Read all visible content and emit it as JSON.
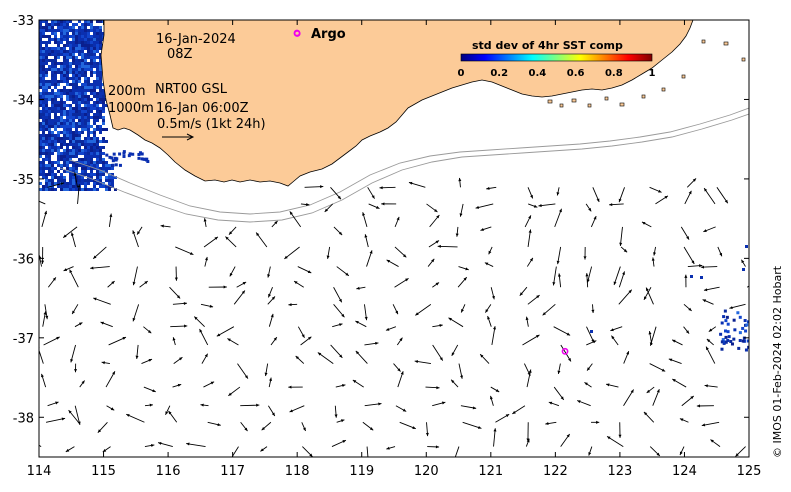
{
  "title": {
    "date": "16-Jan-2024",
    "time": "08Z"
  },
  "annotations": {
    "contour_200": "200m",
    "product": "NRT00 GSL",
    "contour_1000": "1000m",
    "product_time": "16-Jan 06:00Z",
    "scale_arrow": "0.5m/s (1kt 24h)"
  },
  "legend": {
    "argo_label": "Argo",
    "argo_color": "#ee00ee"
  },
  "colorbar": {
    "title": "std dev of 4hr SST comp",
    "ticks": [
      "0",
      "0.2",
      "0.4",
      "0.6",
      "0.8",
      "1"
    ],
    "colors": [
      "#00007f",
      "#0000ff",
      "#007fff",
      "#00ffff",
      "#7fff7f",
      "#ffff00",
      "#ff7f00",
      "#ff0000",
      "#7f0000"
    ]
  },
  "credit": "© IMOS 01-Feb-2024 02:02 Hobart",
  "colors": {
    "land": "#fccb98",
    "ocean": "#ffffff",
    "sst_high": "#0a2fb0",
    "arrow": "#000000",
    "isobath": "#9a9a9a"
  },
  "axes": {
    "x_ticks": [
      "114",
      "115",
      "116",
      "117",
      "118",
      "119",
      "120",
      "121",
      "122",
      "123",
      "124",
      "125"
    ],
    "y_ticks": [
      "-33",
      "-34",
      "-35",
      "-36",
      "-37",
      "-38"
    ]
  },
  "argo_floats": [
    {
      "lon": 118.0,
      "lat": -33.17
    },
    {
      "lon": 122.15,
      "lat": -37.17
    }
  ]
}
